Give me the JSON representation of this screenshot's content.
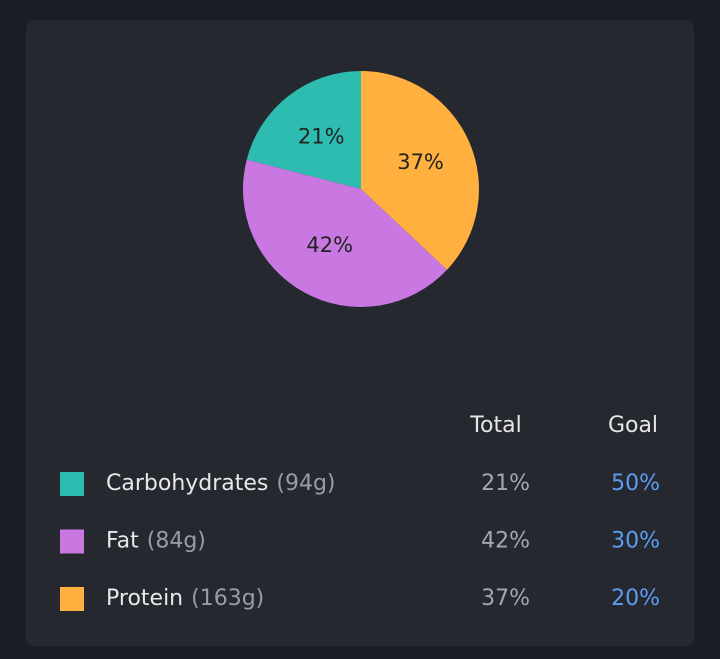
{
  "chart_data": {
    "type": "pie",
    "categories": [
      "Carbohydrates",
      "Fat",
      "Protein"
    ],
    "values": [
      21,
      42,
      37
    ],
    "value_labels": [
      "21%",
      "42%",
      "37%"
    ],
    "colors": [
      "#2ebcb1",
      "#c978e1",
      "#ffb03e"
    ]
  },
  "table": {
    "header": [
      "Total",
      "Goal"
    ],
    "rows": [
      {
        "name": "Carbohydrates",
        "amount": "(94g)",
        "total": "21%",
        "goal": "50%"
      },
      {
        "name": "Fat",
        "amount": "(84g)",
        "total": "42%",
        "goal": "30%"
      },
      {
        "name": "Protein",
        "amount": "(163g)",
        "total": "37%",
        "goal": "20%"
      }
    ]
  }
}
